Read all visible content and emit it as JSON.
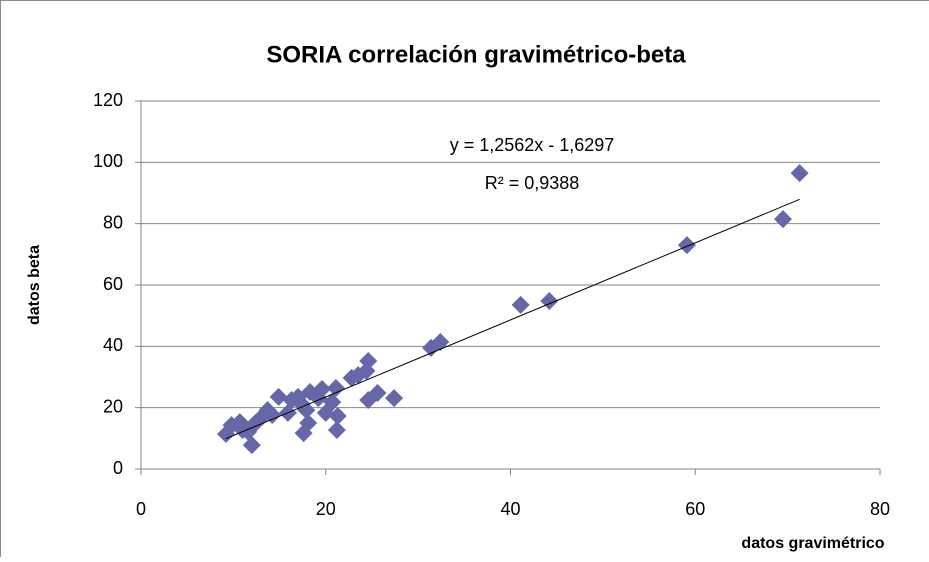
{
  "chart_data": {
    "type": "scatter",
    "title": "SORIA correlación gravimétrico-beta",
    "x_label": "datos gravimétrico",
    "y_label": "datos beta",
    "series": [
      {
        "name": "datos beta",
        "color": "#6667a8",
        "x": [
          9.2,
          9.8,
          10.7,
          11.0,
          11.6,
          12.0,
          12.4,
          13.1,
          13.7,
          14.2,
          14.9,
          15.9,
          16.3,
          17.0,
          17.4,
          17.6,
          17.9,
          18.1,
          18.3,
          19.2,
          19.6,
          20.0,
          20.7,
          21.1,
          21.2,
          21.3,
          22.8,
          23.5,
          24.4,
          24.6,
          24.6,
          25.6,
          27.4,
          31.4,
          32.4,
          41.1,
          44.2,
          59.1,
          69.5,
          71.3
        ],
        "values": [
          11.4,
          14.3,
          15.3,
          12.7,
          12.1,
          7.8,
          15.0,
          17.0,
          19.2,
          17.6,
          23.5,
          18.3,
          22.5,
          23.5,
          21.2,
          11.7,
          19.2,
          15.0,
          25.1,
          23.1,
          26.1,
          18.3,
          21.8,
          26.4,
          12.7,
          17.3,
          29.7,
          30.6,
          32.0,
          35.2,
          22.5,
          24.8,
          23.1,
          39.5,
          41.4,
          53.5,
          54.8,
          73.0,
          81.5,
          96.5
        ]
      }
    ],
    "trendline": {
      "slope": 1.2562,
      "intercept": -1.6297,
      "label": "y = 1,2562x - 1,6297",
      "r2": 0.9388,
      "r2_label": "R² = 0,9388"
    },
    "xlim": [
      0,
      80
    ],
    "xticks": [
      0,
      20,
      40,
      60,
      80
    ],
    "ylim": [
      0,
      120
    ],
    "yticks": [
      0,
      20,
      40,
      60,
      80,
      100,
      120
    ],
    "grid": true
  }
}
